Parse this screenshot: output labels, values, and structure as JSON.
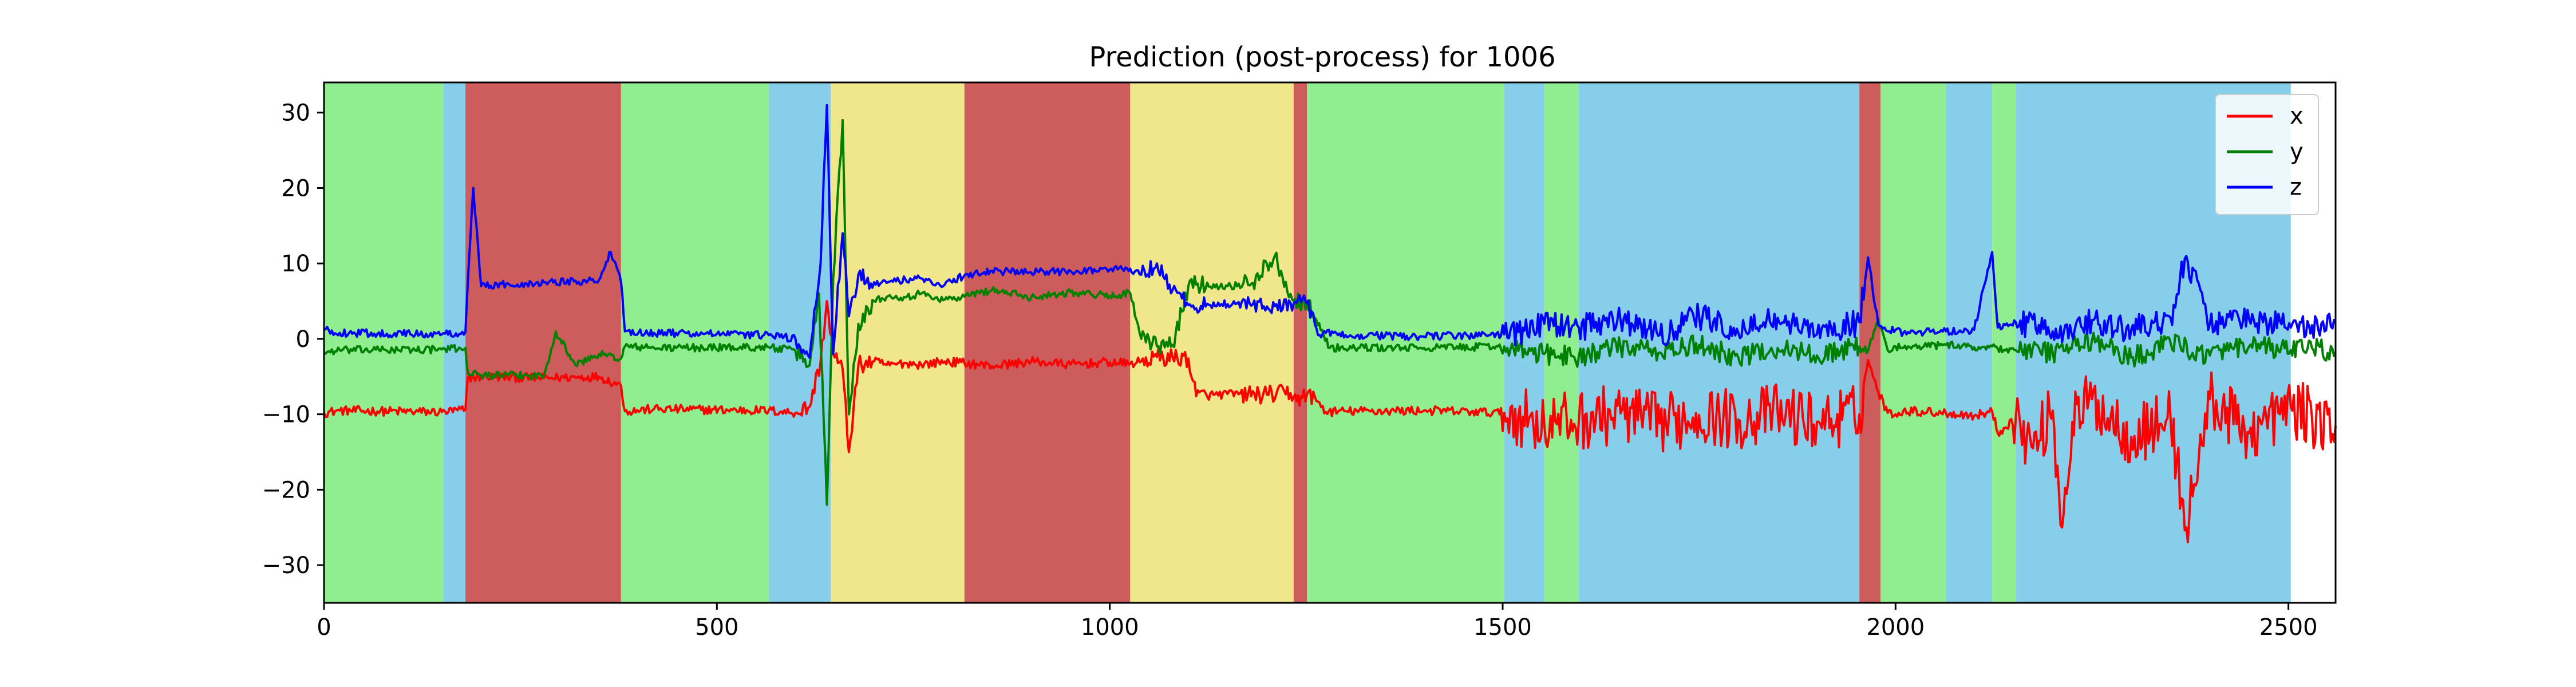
{
  "chart_data": {
    "type": "line",
    "title": "Prediction (post-process) for 1006",
    "xlabel": "",
    "ylabel": "",
    "xlim": [
      0,
      2560
    ],
    "ylim": [
      -35,
      34
    ],
    "xticks": [
      0,
      500,
      1000,
      1500,
      2000,
      2500
    ],
    "yticks": [
      -30,
      -20,
      -10,
      0,
      10,
      20,
      30
    ],
    "legend_position": "top-right",
    "grid": false,
    "segment_colors": {
      "green": "#90ee90",
      "blue": "#87ceeb",
      "red": "#cd5c5c",
      "yellow": "#f0e68c"
    },
    "segments": [
      {
        "start": 0,
        "end": 152,
        "color": "green"
      },
      {
        "start": 152,
        "end": 180,
        "color": "blue"
      },
      {
        "start": 180,
        "end": 378,
        "color": "red"
      },
      {
        "start": 378,
        "end": 566,
        "color": "green"
      },
      {
        "start": 566,
        "end": 645,
        "color": "blue"
      },
      {
        "start": 645,
        "end": 815,
        "color": "yellow"
      },
      {
        "start": 815,
        "end": 1026,
        "color": "red"
      },
      {
        "start": 1026,
        "end": 1234,
        "color": "yellow"
      },
      {
        "start": 1234,
        "end": 1251,
        "color": "red"
      },
      {
        "start": 1251,
        "end": 1502,
        "color": "green"
      },
      {
        "start": 1502,
        "end": 1553,
        "color": "blue"
      },
      {
        "start": 1553,
        "end": 1597,
        "color": "green"
      },
      {
        "start": 1597,
        "end": 1954,
        "color": "blue"
      },
      {
        "start": 1954,
        "end": 1981,
        "color": "red"
      },
      {
        "start": 1981,
        "end": 2064,
        "color": "green"
      },
      {
        "start": 2064,
        "end": 2123,
        "color": "blue"
      },
      {
        "start": 2123,
        "end": 2153,
        "color": "green"
      },
      {
        "start": 2153,
        "end": 2503,
        "color": "blue"
      }
    ],
    "series": [
      {
        "name": "x",
        "color": "#ff0000",
        "x": [
          0,
          20,
          150,
          180,
          183,
          200,
          280,
          350,
          378,
          383,
          420,
          566,
          600,
          618,
          632,
          640,
          648,
          660,
          668,
          680,
          700,
          720,
          740,
          760,
          790,
          815,
          850,
          900,
          950,
          1000,
          1026,
          1040,
          1060,
          1080,
          1100,
          1110,
          1150,
          1200,
          1230,
          1234,
          1245,
          1251,
          1265,
          1275,
          1300,
          1400,
          1502,
          1520,
          1553,
          1597,
          1650,
          1700,
          1750,
          1800,
          1850,
          1900,
          1954,
          1965,
          1978,
          1990,
          2000,
          2010,
          2064,
          2100,
          2123,
          2130,
          2153,
          2175,
          2200,
          2212,
          2225,
          2250,
          2300,
          2350,
          2370,
          2400,
          2450,
          2503,
          2530,
          2560
        ],
        "y": [
          -9.8,
          -9.5,
          -9.7,
          -9.4,
          -5.2,
          -5.0,
          -5.2,
          -5.0,
          -6.2,
          -9.6,
          -9.3,
          -9.5,
          -9.8,
          -9.0,
          -3.0,
          5.0,
          -2.0,
          -4.0,
          -15.0,
          -3.5,
          -3.0,
          -3.5,
          -3.2,
          -3.4,
          -3.0,
          -3.2,
          -3.6,
          -3.0,
          -3.4,
          -3.1,
          -3.3,
          -3.0,
          -2.4,
          -2.5,
          -2.6,
          -7.6,
          -7.3,
          -7.4,
          -7.2,
          -7.7,
          -7.8,
          -7.3,
          -8.3,
          -9.7,
          -9.6,
          -9.5,
          -9.8,
          -10.2,
          -11.3,
          -10.8,
          -9.9,
          -11.2,
          -10.1,
          -10.7,
          -9.8,
          -11.0,
          -10.0,
          -2.8,
          -7.0,
          -9.8,
          -10.0,
          -9.5,
          -9.8,
          -10.2,
          -9.6,
          -12.5,
          -10.5,
          -14.5,
          -9.5,
          -25.0,
          -11.0,
          -8.0,
          -13.0,
          -10.5,
          -25.0,
          -8.0,
          -12.5,
          -9.0,
          -10.5,
          -11.5
        ]
      },
      {
        "name": "y",
        "color": "#008000",
        "x": [
          0,
          20,
          150,
          180,
          183,
          200,
          280,
          295,
          320,
          350,
          378,
          383,
          420,
          566,
          600,
          618,
          630,
          640,
          648,
          660,
          668,
          680,
          700,
          720,
          740,
          760,
          790,
          815,
          850,
          900,
          950,
          1000,
          1026,
          1040,
          1060,
          1080,
          1100,
          1110,
          1150,
          1180,
          1210,
          1234,
          1251,
          1280,
          1400,
          1502,
          1520,
          1553,
          1597,
          1650,
          1700,
          1750,
          1800,
          1850,
          1900,
          1954,
          1965,
          1978,
          1990,
          2000,
          2010,
          2064,
          2100,
          2123,
          2130,
          2153,
          2200,
          2250,
          2300,
          2350,
          2400,
          2450,
          2503,
          2530,
          2560
        ],
        "y": [
          -1.8,
          -1.5,
          -1.4,
          -1.2,
          -4.5,
          -4.8,
          -4.9,
          1.0,
          -3.5,
          -2.0,
          -2.6,
          -1.0,
          -1.2,
          -1.1,
          -1.6,
          -3.5,
          6.0,
          -22.0,
          8.0,
          29.0,
          -10.0,
          2.0,
          5.0,
          5.8,
          5.5,
          6.0,
          5.2,
          5.6,
          6.5,
          5.5,
          6.2,
          5.7,
          6.1,
          0.0,
          -1.0,
          -0.8,
          7.0,
          7.2,
          7.0,
          7.3,
          11.0,
          5.0,
          5.0,
          -1.2,
          -1.2,
          -1.0,
          -1.6,
          -2.0,
          -2.3,
          -1.0,
          -1.8,
          -0.8,
          -2.5,
          -1.2,
          -2.2,
          -1.0,
          -1.6,
          2.5,
          -1.5,
          -1.0,
          -1.2,
          -0.8,
          -1.1,
          -1.0,
          -1.3,
          -1.5,
          -1.8,
          -0.2,
          -2.5,
          -0.5,
          -2.2,
          -1.0,
          -1.5,
          -1.2,
          -1.8
        ]
      },
      {
        "name": "z",
        "color": "#0000ff",
        "x": [
          0,
          20,
          150,
          180,
          183,
          190,
          200,
          280,
          350,
          365,
          378,
          383,
          420,
          566,
          600,
          618,
          632,
          640,
          648,
          660,
          668,
          680,
          700,
          720,
          760,
          790,
          815,
          850,
          900,
          950,
          1000,
          1026,
          1040,
          1060,
          1080,
          1100,
          1150,
          1180,
          1200,
          1230,
          1234,
          1251,
          1265,
          1275,
          1300,
          1400,
          1502,
          1520,
          1553,
          1597,
          1650,
          1700,
          1750,
          1800,
          1850,
          1900,
          1954,
          1965,
          1978,
          1990,
          2000,
          2010,
          2064,
          2100,
          2123,
          2130,
          2153,
          2200,
          2250,
          2300,
          2350,
          2370,
          2400,
          2450,
          2503,
          2530,
          2560
        ],
        "y": [
          1.2,
          0.8,
          0.6,
          0.9,
          7.5,
          20.0,
          7.0,
          7.5,
          7.8,
          11.5,
          7.5,
          1.0,
          0.8,
          0.5,
          0.0,
          -2.5,
          10.0,
          31.0,
          -2.0,
          14.0,
          3.0,
          8.5,
          7.5,
          7.6,
          8.0,
          7.2,
          8.4,
          9.0,
          8.8,
          9.0,
          9.2,
          9.3,
          8.5,
          10.0,
          6.5,
          4.5,
          4.6,
          4.4,
          4.3,
          4.8,
          4.7,
          4.7,
          0.5,
          0.8,
          0.5,
          0.3,
          0.6,
          0.9,
          2.0,
          1.5,
          2.5,
          0.5,
          3.0,
          0.8,
          2.8,
          0.6,
          2.2,
          10.8,
          1.8,
          1.0,
          1.2,
          0.8,
          1.0,
          1.2,
          11.5,
          1.5,
          2.2,
          1.0,
          2.5,
          1.2,
          2.8,
          11.0,
          2.0,
          2.6,
          1.5,
          1.8,
          2.2
        ]
      }
    ]
  }
}
